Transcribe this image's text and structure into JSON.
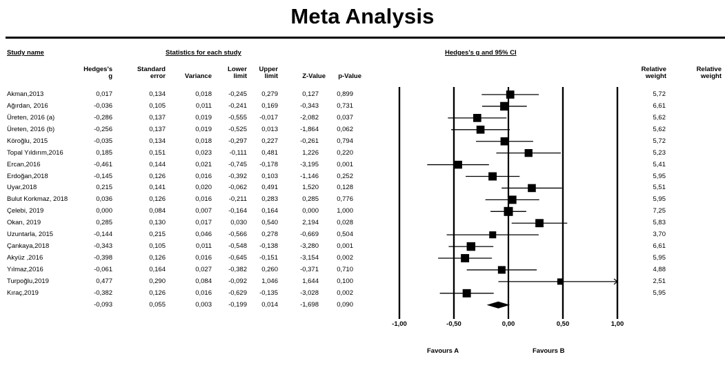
{
  "title": "Meta Analysis",
  "headers": {
    "study_name": "Study name",
    "stats_group": "Statistics for each study",
    "plot_group": "Hedges's g and 95% CI",
    "hedges_g": [
      "Hedges's",
      "g"
    ],
    "std_err": [
      "Standard",
      "error"
    ],
    "variance": "Variance",
    "lower": [
      "Lower",
      "limit"
    ],
    "upper": [
      "Upper",
      "limit"
    ],
    "z": "Z-Value",
    "p": "p-Value",
    "rel_weight_1": [
      "Relative",
      "weight"
    ],
    "rel_weight_2": [
      "Relative",
      "weight"
    ]
  },
  "favours": {
    "a": "Favours A",
    "b": "Favours B"
  },
  "chart_data": {
    "type": "forest",
    "title": "Meta Analysis",
    "xlabel": "Hedges's g and 95% CI",
    "xlim": [
      -1,
      1
    ],
    "x_ticks": [
      -1,
      -0.5,
      0,
      0.5,
      1
    ],
    "x_tick_labels": [
      "-1,00",
      "-0,50",
      "0,00",
      "0,50",
      "1,00"
    ],
    "studies": [
      {
        "name": "Akman,2013",
        "g": 0.017,
        "se": 0.134,
        "var": 0.018,
        "lo": -0.245,
        "hi": 0.279,
        "z": 0.127,
        "p": 0.899,
        "w": 5.72,
        "cells": [
          "0,017",
          "0,134",
          "0,018",
          "-0,245",
          "0,279",
          "0,127",
          "0,899",
          "5,72"
        ]
      },
      {
        "name": "Ağırdan, 2016",
        "g": -0.036,
        "se": 0.105,
        "var": 0.011,
        "lo": -0.241,
        "hi": 0.169,
        "z": -0.343,
        "p": 0.731,
        "w": 6.61,
        "cells": [
          "-0,036",
          "0,105",
          "0,011",
          "-0,241",
          "0,169",
          "-0,343",
          "0,731",
          "6,61"
        ]
      },
      {
        "name": "Üreten, 2016 (a)",
        "g": -0.286,
        "se": 0.137,
        "var": 0.019,
        "lo": -0.555,
        "hi": -0.017,
        "z": -2.082,
        "p": 0.037,
        "w": 5.62,
        "cells": [
          "-0,286",
          "0,137",
          "0,019",
          "-0,555",
          "-0,017",
          "-2,082",
          "0,037",
          "5,62"
        ]
      },
      {
        "name": "Üreten, 2016 (b)",
        "g": -0.256,
        "se": 0.137,
        "var": 0.019,
        "lo": -0.525,
        "hi": 0.013,
        "z": -1.864,
        "p": 0.062,
        "w": 5.62,
        "cells": [
          "-0,256",
          "0,137",
          "0,019",
          "-0,525",
          "0,013",
          "-1,864",
          "0,062",
          "5,62"
        ]
      },
      {
        "name": "Köroğlu, 2015",
        "g": -0.035,
        "se": 0.134,
        "var": 0.018,
        "lo": -0.297,
        "hi": 0.227,
        "z": -0.261,
        "p": 0.794,
        "w": 5.72,
        "cells": [
          "-0,035",
          "0,134",
          "0,018",
          "-0,297",
          "0,227",
          "-0,261",
          "0,794",
          "5,72"
        ]
      },
      {
        "name": "Topal Yıldırım,2016",
        "g": 0.185,
        "se": 0.151,
        "var": 0.023,
        "lo": -0.111,
        "hi": 0.481,
        "z": 1.226,
        "p": 0.22,
        "w": 5.23,
        "cells": [
          "0,185",
          "0,151",
          "0,023",
          "-0,111",
          "0,481",
          "1,226",
          "0,220",
          "5,23"
        ]
      },
      {
        "name": "Ercan,2016",
        "g": -0.461,
        "se": 0.144,
        "var": 0.021,
        "lo": -0.745,
        "hi": -0.178,
        "z": -3.195,
        "p": 0.001,
        "w": 5.41,
        "cells": [
          "-0,461",
          "0,144",
          "0,021",
          "-0,745",
          "-0,178",
          "-3,195",
          "0,001",
          "5,41"
        ]
      },
      {
        "name": "Erdoğan,2018",
        "g": -0.145,
        "se": 0.126,
        "var": 0.016,
        "lo": -0.392,
        "hi": 0.103,
        "z": -1.146,
        "p": 0.252,
        "w": 5.95,
        "cells": [
          "-0,145",
          "0,126",
          "0,016",
          "-0,392",
          "0,103",
          "-1,146",
          "0,252",
          "5,95"
        ]
      },
      {
        "name": "Uyar,2018",
        "g": 0.215,
        "se": 0.141,
        "var": 0.02,
        "lo": -0.062,
        "hi": 0.491,
        "z": 1.52,
        "p": 0.128,
        "w": 5.51,
        "cells": [
          "0,215",
          "0,141",
          "0,020",
          "-0,062",
          "0,491",
          "1,520",
          "0,128",
          "5,51"
        ]
      },
      {
        "name": "Bulut Korkmaz, 2018",
        "g": 0.036,
        "se": 0.126,
        "var": 0.016,
        "lo": -0.211,
        "hi": 0.283,
        "z": 0.285,
        "p": 0.776,
        "w": 5.95,
        "cells": [
          "0,036",
          "0,126",
          "0,016",
          "-0,211",
          "0,283",
          "0,285",
          "0,776",
          "5,95"
        ]
      },
      {
        "name": "Çelebi, 2019",
        "g": 0.0,
        "se": 0.084,
        "var": 0.007,
        "lo": -0.164,
        "hi": 0.164,
        "z": 0.0,
        "p": 1.0,
        "w": 7.25,
        "cells": [
          "0,000",
          "0,084",
          "0,007",
          "-0,164",
          "0,164",
          "0,000",
          "1,000",
          "7,25"
        ]
      },
      {
        "name": "Okan, 2019",
        "g": 0.285,
        "se": 0.13,
        "var": 0.017,
        "lo": 0.03,
        "hi": 0.54,
        "z": 2.194,
        "p": 0.028,
        "w": 5.83,
        "cells": [
          "0,285",
          "0,130",
          "0,017",
          "0,030",
          "0,540",
          "2,194",
          "0,028",
          "5,83"
        ]
      },
      {
        "name": "Uzuntarla, 2015",
        "g": -0.144,
        "se": 0.215,
        "var": 0.046,
        "lo": -0.566,
        "hi": 0.278,
        "z": -0.669,
        "p": 0.504,
        "w": 3.7,
        "cells": [
          "-0,144",
          "0,215",
          "0,046",
          "-0,566",
          "0,278",
          "-0,669",
          "0,504",
          "3,70"
        ]
      },
      {
        "name": "Çankaya,2018",
        "g": -0.343,
        "se": 0.105,
        "var": 0.011,
        "lo": -0.548,
        "hi": -0.138,
        "z": -3.28,
        "p": 0.001,
        "w": 6.61,
        "cells": [
          "-0,343",
          "0,105",
          "0,011",
          "-0,548",
          "-0,138",
          "-3,280",
          "0,001",
          "6,61"
        ]
      },
      {
        "name": "Akyüz ,2016",
        "g": -0.398,
        "se": 0.126,
        "var": 0.016,
        "lo": -0.645,
        "hi": -0.151,
        "z": -3.154,
        "p": 0.002,
        "w": 5.95,
        "cells": [
          "-0,398",
          "0,126",
          "0,016",
          "-0,645",
          "-0,151",
          "-3,154",
          "0,002",
          "5,95"
        ]
      },
      {
        "name": "Yılmaz,2016",
        "g": -0.061,
        "se": 0.164,
        "var": 0.027,
        "lo": -0.382,
        "hi": 0.26,
        "z": -0.371,
        "p": 0.71,
        "w": 4.88,
        "cells": [
          "-0,061",
          "0,164",
          "0,027",
          "-0,382",
          "0,260",
          "-0,371",
          "0,710",
          "4,88"
        ]
      },
      {
        "name": "Turpoğlu,2019",
        "g": 0.477,
        "se": 0.29,
        "var": 0.084,
        "lo": -0.092,
        "hi": 1.046,
        "z": 1.644,
        "p": 0.1,
        "w": 2.51,
        "cells": [
          "0,477",
          "0,290",
          "0,084",
          "-0,092",
          "1,046",
          "1,644",
          "0,100",
          "2,51"
        ]
      },
      {
        "name": "Kıraç,2019",
        "g": -0.382,
        "se": 0.126,
        "var": 0.016,
        "lo": -0.629,
        "hi": -0.135,
        "z": -3.028,
        "p": 0.002,
        "w": 5.95,
        "cells": [
          "-0,382",
          "0,126",
          "0,016",
          "-0,629",
          "-0,135",
          "-3,028",
          "0,002",
          "5,95"
        ]
      }
    ],
    "summary": {
      "g": -0.093,
      "se": 0.055,
      "var": 0.003,
      "lo": -0.199,
      "hi": 0.014,
      "z": -1.698,
      "p": 0.09,
      "cells": [
        "-0,093",
        "0,055",
        "0,003",
        "-0,199",
        "0,014",
        "-1,698",
        "0,090"
      ]
    }
  }
}
